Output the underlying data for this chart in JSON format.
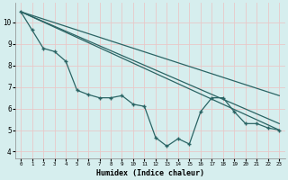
{
  "xlabel": "Humidex (Indice chaleur)",
  "bg_color": "#d6eeee",
  "grid_color": "#b8d8d8",
  "line_color": "#2a6464",
  "xlim": [
    -0.5,
    23.5
  ],
  "ylim": [
    3.7,
    10.9
  ],
  "xticks": [
    0,
    1,
    2,
    3,
    4,
    5,
    6,
    7,
    8,
    9,
    10,
    11,
    12,
    13,
    14,
    15,
    16,
    17,
    18,
    19,
    20,
    21,
    22,
    23
  ],
  "yticks": [
    4,
    5,
    6,
    7,
    8,
    9,
    10
  ],
  "series_x": [
    0,
    1,
    2,
    3,
    4,
    5,
    6,
    7,
    8,
    9,
    10,
    11,
    12,
    13,
    14,
    15,
    16,
    17,
    18,
    19,
    20,
    21,
    22,
    23
  ],
  "series_y": [
    10.5,
    9.65,
    8.8,
    8.65,
    8.2,
    6.85,
    6.65,
    6.5,
    6.5,
    6.6,
    6.2,
    6.1,
    4.65,
    4.25,
    4.6,
    4.35,
    5.85,
    6.5,
    6.5,
    5.85,
    5.3,
    5.3,
    5.1,
    5.0
  ],
  "trend1_x": [
    0,
    23
  ],
  "trend1_y": [
    10.5,
    5.0
  ],
  "trend2_x": [
    0,
    23
  ],
  "trend2_y": [
    10.5,
    5.3
  ],
  "trend3_x": [
    0,
    23
  ],
  "trend3_y": [
    10.5,
    6.6
  ]
}
